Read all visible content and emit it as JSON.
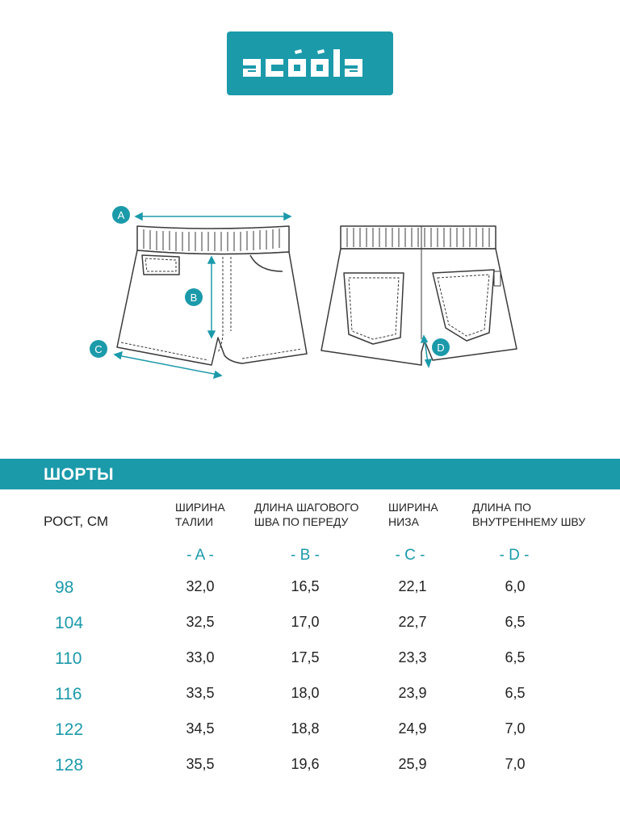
{
  "brand": {
    "logo_text": "acoola",
    "color": "#1b9aaa"
  },
  "diagram": {
    "markers": [
      "A",
      "B",
      "C",
      "D"
    ]
  },
  "table": {
    "title": "ШОРТЫ",
    "height_header": "РОСТ, СМ",
    "columns": [
      {
        "line1": "ШИРИНА",
        "line2": "ТАЛИИ",
        "letter": "- A -"
      },
      {
        "line1": "ДЛИНА ШАГОВОГО",
        "line2": "ШВА ПО ПЕРЕДУ",
        "letter": "- B -"
      },
      {
        "line1": "ШИРИНА",
        "line2": "НИЗА",
        "letter": "- C -"
      },
      {
        "line1": "ДЛИНА ПО",
        "line2": "ВНУТРЕННЕМУ ШВУ",
        "letter": "- D -"
      }
    ],
    "rows": [
      {
        "size": "98",
        "values": [
          "32,0",
          "16,5",
          "22,1",
          "6,0"
        ]
      },
      {
        "size": "104",
        "values": [
          "32,5",
          "17,0",
          "22,7",
          "6,5"
        ]
      },
      {
        "size": "110",
        "values": [
          "33,0",
          "17,5",
          "23,3",
          "6,5"
        ]
      },
      {
        "size": "116",
        "values": [
          "33,5",
          "18,0",
          "23,9",
          "6,5"
        ]
      },
      {
        "size": "122",
        "values": [
          "34,5",
          "18,8",
          "24,9",
          "7,0"
        ]
      },
      {
        "size": "128",
        "values": [
          "35,5",
          "19,6",
          "25,9",
          "7,0"
        ]
      }
    ]
  }
}
